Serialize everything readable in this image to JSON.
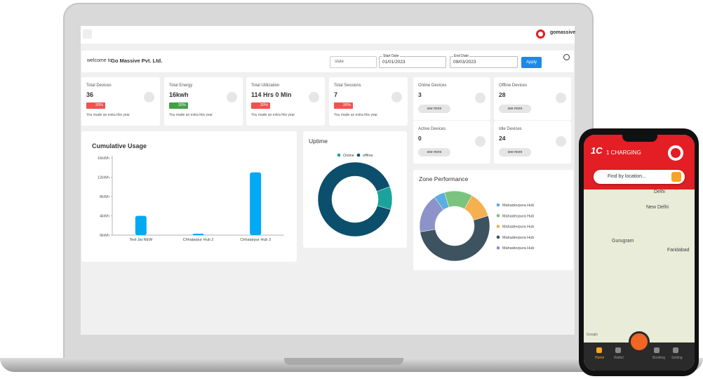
{
  "header": {
    "brand": "gomassive",
    "welcome": "welcome to",
    "company": "Go Massive Pvt. Ltd.",
    "state": "state",
    "start_label": "Start Date",
    "start_date": "01/01/2023",
    "end_label": "End Date",
    "end_date": "09/03/2023",
    "apply": "Apply"
  },
  "stats": [
    {
      "label": "Total Devices",
      "value": "36",
      "change": "20%",
      "trend": "down",
      "note": "You made an extra this year"
    },
    {
      "label": "Total Energy",
      "value": "16kwh",
      "change": "20%",
      "trend": "up",
      "note": "You made an extra this year"
    },
    {
      "label": "Total Utilization",
      "value": "114 Hrs 0 Min",
      "change": "20%",
      "trend": "down",
      "note": "You made an extra this year"
    },
    {
      "label": "Total Sessions",
      "value": "7",
      "change": "20%",
      "trend": "down",
      "note": "You made an extra this year"
    }
  ],
  "devices": [
    {
      "label": "Online Devices",
      "value": "3",
      "action": "see more"
    },
    {
      "label": "Offline Devices",
      "value": "28",
      "action": "see more"
    },
    {
      "label": "Active Devices",
      "value": "0",
      "action": "see more"
    },
    {
      "label": "Idle Devices",
      "value": "24",
      "action": "see more"
    }
  ],
  "chart_data": [
    {
      "type": "bar",
      "title": "Cumulative Usage",
      "categories": [
        "Test Jai NEW",
        "Chhatarpur Hub 2",
        "Chhatarpur Hub 3"
      ],
      "values": [
        4,
        0.3,
        13
      ],
      "color": "#03a9f4",
      "ylim": [
        0,
        16
      ],
      "yticks": [
        {
          "value": 0,
          "label": "0kWh"
        },
        {
          "value": 4,
          "label": "4kWh"
        },
        {
          "value": 8,
          "label": "8kWh"
        },
        {
          "value": 12,
          "label": "12kWh"
        },
        {
          "value": 16,
          "label": "16kWh"
        }
      ]
    },
    {
      "type": "donut",
      "title": "Uptime",
      "categories": [
        "Online",
        "offline"
      ],
      "values": [
        10,
        90
      ],
      "colors": [
        "#1aa39a",
        "#0b4f6c"
      ]
    },
    {
      "type": "donut",
      "title": "Zone Performance",
      "categories": [
        "Mahadevpura Hub",
        "Mahadevpura Hub",
        "Mahadevpura Hub",
        "Mahadevpura Hub",
        "Mahadevpura Hub"
      ],
      "values": [
        5,
        13,
        12,
        52,
        18
      ],
      "colors": [
        "#5aaee0",
        "#7bc47f",
        "#f5b04f",
        "#3d5360",
        "#8b93c9"
      ]
    }
  ],
  "phone": {
    "logo": "1C",
    "brand": "1 CHARGING",
    "search": "Find by location...",
    "map_labels": [
      "Delhi",
      "New Delhi",
      "Gurugram",
      "Faridabad"
    ],
    "map_credit": "Google",
    "nav": [
      "Home",
      "Wallet",
      "Booking",
      "Setting"
    ]
  }
}
